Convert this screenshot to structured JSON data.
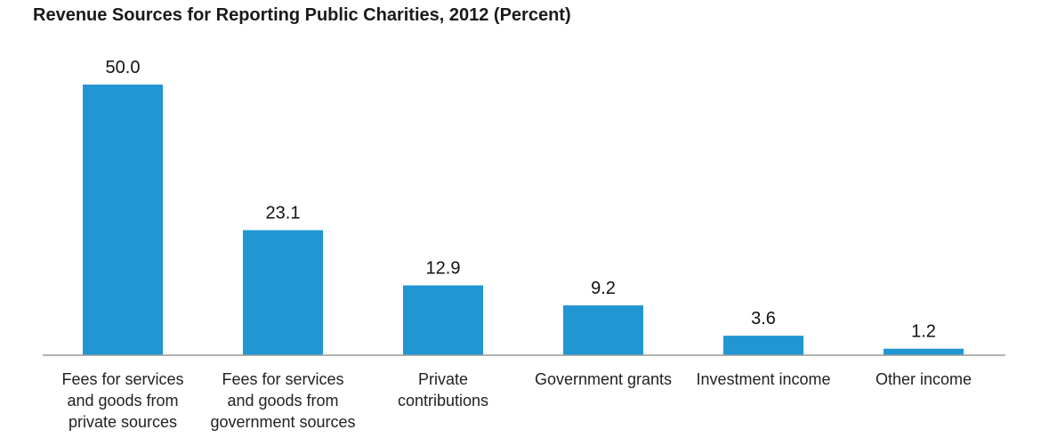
{
  "chart_data": {
    "type": "bar",
    "title": "Revenue Sources for Reporting Public Charities, 2012 (Percent)",
    "xlabel": "",
    "ylabel": "",
    "categories": [
      "Fees for services and goods from private sources",
      "Fees for services and goods from government sources",
      "Private contributions",
      "Government grants",
      "Investment income",
      "Other income"
    ],
    "category_lines": [
      [
        "Fees for services",
        "and goods from",
        "private sources"
      ],
      [
        "Fees for services",
        "and goods from",
        "government sources"
      ],
      [
        "Private",
        "contributions"
      ],
      [
        "Government grants"
      ],
      [
        "Investment income"
      ],
      [
        "Other income"
      ]
    ],
    "values": [
      50.0,
      23.1,
      12.9,
      9.2,
      3.6,
      1.2
    ],
    "value_labels": [
      "50.0",
      "23.1",
      "12.9",
      "9.2",
      "3.6",
      "1.2"
    ],
    "ylim": [
      0,
      50
    ],
    "grid": false,
    "legend": "none",
    "colors": {
      "bar": "#2196d3",
      "axis": "#999999",
      "text": "#111111"
    }
  }
}
